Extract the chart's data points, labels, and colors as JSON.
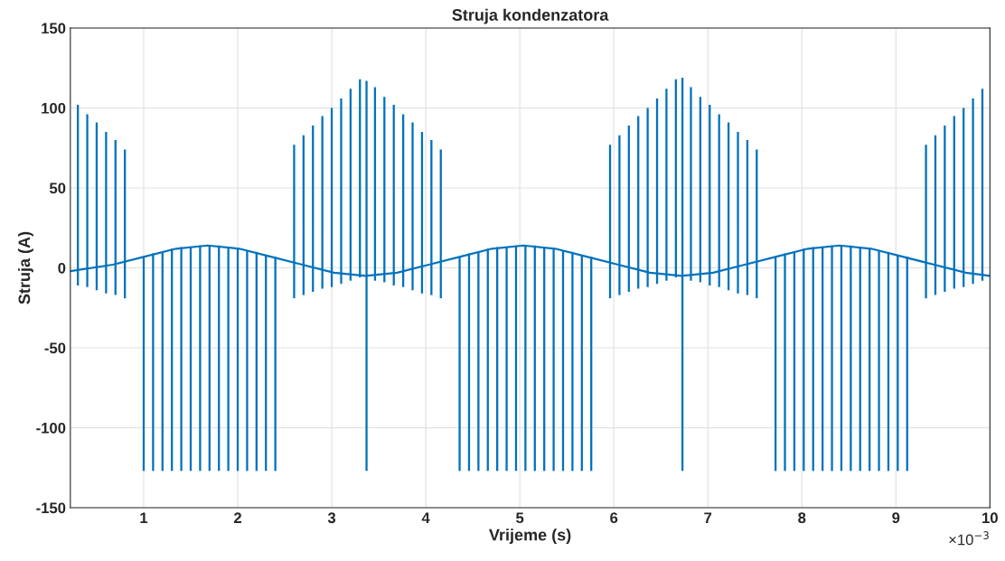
{
  "chart_data": {
    "type": "line",
    "title": "Struja kondenzatora",
    "xlabel": "Vrijeme (s)",
    "ylabel": "Struja (A)",
    "xlim": [
      0.22,
      10
    ],
    "ylim": [
      -150,
      150
    ],
    "xticks": [
      1,
      2,
      3,
      4,
      5,
      6,
      7,
      8,
      9,
      10
    ],
    "yticks": [
      -150,
      -100,
      -50,
      0,
      50,
      100,
      150
    ],
    "annotations": [
      "×10$^{−3}$"
    ],
    "grid": true,
    "legend": false,
    "line_style": "solid",
    "marker": "none",
    "series": [
      {
        "color": "#0072bd",
        "x": [
          0.22,
          0.672,
          1.008,
          1.344,
          1.68,
          2.016,
          2.352,
          2.688,
          3.024,
          3.36,
          3.696,
          4.032,
          4.368,
          4.704,
          5.04,
          5.376,
          5.712,
          6.048,
          6.384,
          6.72,
          7.056,
          7.392,
          7.728,
          8.064,
          8.4,
          8.736,
          9.072,
          9.408,
          9.744,
          10
        ],
        "values": [
          -2,
          2,
          7,
          12,
          14,
          12,
          7,
          2,
          -3,
          -5,
          -3,
          2,
          7,
          12,
          14,
          12,
          7,
          2,
          -3,
          -5,
          -3,
          2,
          7,
          12,
          14,
          12,
          7,
          2,
          -3,
          -5
        ]
      },
      {
        "type": "bar",
        "color": "#0072bd",
        "x": [
          0.3,
          0.4,
          0.5,
          0.6,
          0.7,
          0.8,
          1.0,
          1.1,
          1.2,
          1.3,
          1.4,
          1.5,
          1.6,
          1.7,
          1.8,
          1.9,
          2.0,
          2.1,
          2.2,
          2.3,
          2.4,
          2.6,
          2.7,
          2.8,
          2.9,
          3.0,
          3.1,
          3.2,
          3.3,
          3.37,
          3.46,
          3.56,
          3.66,
          3.76,
          3.86,
          3.96,
          4.06,
          4.16,
          4.36,
          4.46,
          4.56,
          4.66,
          4.76,
          4.86,
          4.96,
          5.06,
          5.16,
          5.26,
          5.36,
          5.46,
          5.56,
          5.66,
          5.76,
          5.96,
          6.06,
          6.16,
          6.26,
          6.36,
          6.46,
          6.56,
          6.66,
          6.73,
          6.82,
          6.92,
          7.02,
          7.12,
          7.22,
          7.32,
          7.42,
          7.52,
          7.72,
          7.82,
          7.92,
          8.02,
          8.12,
          8.22,
          8.32,
          8.42,
          8.52,
          8.62,
          8.72,
          8.82,
          8.92,
          9.02,
          9.12,
          9.32,
          9.42,
          9.52,
          9.62,
          9.72,
          9.82,
          9.92
        ],
        "base": [
          -11,
          -12,
          -14,
          -16,
          -17,
          -19,
          -127,
          -127,
          -127,
          -127,
          -127,
          -127,
          -127,
          -127,
          -127,
          -127,
          -127,
          -127,
          -127,
          -127,
          -127,
          -19,
          -17,
          -15,
          -13,
          -12,
          -10,
          -8,
          -6,
          -127,
          -8,
          -9,
          -11,
          -12,
          -14,
          -16,
          -17,
          -19,
          -127,
          -127,
          -127,
          -127,
          -127,
          -127,
          -127,
          -127,
          -127,
          -127,
          -127,
          -127,
          -127,
          -127,
          -127,
          -19,
          -17,
          -15,
          -13,
          -12,
          -10,
          -8,
          -6,
          -127,
          -8,
          -9,
          -11,
          -12,
          -14,
          -16,
          -17,
          -19,
          -127,
          -127,
          -127,
          -127,
          -127,
          -127,
          -127,
          -127,
          -127,
          -127,
          -127,
          -127,
          -127,
          -127,
          -127,
          -19,
          -17,
          -15,
          -13,
          -12,
          -10,
          -8
        ],
        "values": [
          113,
          108,
          105,
          101,
          97,
          93,
          134,
          136,
          137,
          139,
          140,
          140,
          141,
          141,
          141,
          140,
          139,
          138,
          137,
          135,
          134,
          96,
          100,
          104,
          108,
          112,
          116,
          120,
          124,
          244,
          121,
          116,
          113,
          108,
          105,
          101,
          97,
          93,
          134,
          136,
          137,
          139,
          140,
          140,
          141,
          141,
          141,
          140,
          139,
          138,
          137,
          135,
          134,
          96,
          100,
          104,
          108,
          112,
          116,
          120,
          124,
          246,
          121,
          116,
          113,
          108,
          105,
          101,
          97,
          93,
          134,
          136,
          137,
          139,
          140,
          140,
          141,
          141,
          141,
          140,
          139,
          138,
          137,
          135,
          134,
          96,
          100,
          104,
          108,
          112,
          116,
          120
        ]
      }
    ]
  }
}
